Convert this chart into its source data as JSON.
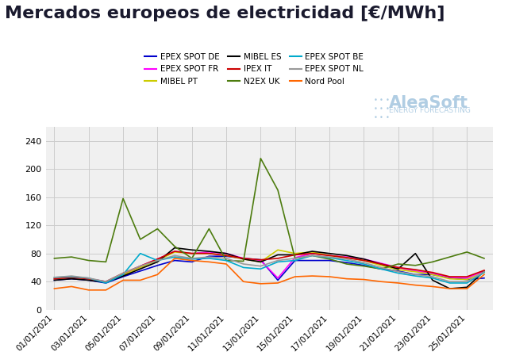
{
  "title": "Mercados europeos de electricidad [€/MWh]",
  "title_fontsize": 16,
  "title_color": "#1a1a2e",
  "background_color": "#ffffff",
  "plot_bg_color": "#f0f0f0",
  "grid_color": "#cccccc",
  "ylim": [
    0,
    260
  ],
  "yticks": [
    0,
    40,
    80,
    120,
    160,
    200,
    240
  ],
  "x_labels": [
    "01/01/2021",
    "03/01/2021",
    "05/01/2021",
    "07/01/2021",
    "09/01/2021",
    "11/01/2021",
    "13/01/2021",
    "15/01/2021",
    "17/01/2021",
    "19/01/2021",
    "21/01/2021",
    "23/01/2021",
    "25/01/2021"
  ],
  "series": {
    "EPEX SPOT DE": {
      "color": "#0000cc",
      "data": [
        42,
        44,
        42,
        38,
        47,
        55,
        63,
        70,
        68,
        76,
        76,
        73,
        71,
        42,
        70,
        70,
        70,
        67,
        63,
        58,
        55,
        50,
        50,
        45,
        43,
        45
      ]
    },
    "EPEX SPOT FR": {
      "color": "#ff00ff",
      "data": [
        44,
        46,
        44,
        40,
        50,
        62,
        72,
        83,
        80,
        82,
        80,
        73,
        70,
        45,
        74,
        80,
        77,
        75,
        72,
        66,
        60,
        55,
        52,
        46,
        45,
        55
      ]
    },
    "MIBEL PT": {
      "color": "#cccc00",
      "data": [
        44,
        46,
        44,
        39,
        50,
        60,
        70,
        82,
        80,
        80,
        77,
        72,
        68,
        85,
        80,
        82,
        77,
        74,
        70,
        63,
        57,
        54,
        50,
        44,
        43,
        53
      ]
    },
    "MIBEL ES": {
      "color": "#000000",
      "data": [
        42,
        44,
        42,
        39,
        48,
        58,
        68,
        88,
        85,
        83,
        80,
        72,
        68,
        78,
        78,
        83,
        80,
        77,
        72,
        65,
        58,
        80,
        42,
        30,
        32,
        55
      ]
    },
    "IPEX IT": {
      "color": "#cc0000",
      "data": [
        44,
        46,
        44,
        40,
        52,
        62,
        72,
        83,
        80,
        80,
        77,
        73,
        71,
        73,
        78,
        80,
        77,
        74,
        70,
        65,
        60,
        57,
        53,
        47,
        47,
        56
      ]
    },
    "N2EX UK": {
      "color": "#4d7c0f",
      "data": [
        73,
        75,
        70,
        68,
        158,
        100,
        115,
        90,
        73,
        115,
        70,
        69,
        215,
        170,
        73,
        77,
        72,
        65,
        62,
        58,
        65,
        63,
        68,
        75,
        82,
        73
      ]
    },
    "EPEX SPOT BE": {
      "color": "#00aacc",
      "data": [
        46,
        47,
        45,
        38,
        50,
        80,
        70,
        75,
        72,
        73,
        70,
        60,
        58,
        68,
        70,
        77,
        74,
        70,
        65,
        58,
        52,
        48,
        45,
        38,
        38,
        53
      ]
    },
    "EPEX SPOT NL": {
      "color": "#999999",
      "data": [
        46,
        48,
        45,
        40,
        52,
        62,
        70,
        77,
        73,
        75,
        73,
        65,
        62,
        70,
        73,
        77,
        75,
        72,
        67,
        60,
        54,
        50,
        47,
        40,
        40,
        54
      ]
    },
    "Nord Pool": {
      "color": "#ff6600",
      "data": [
        30,
        33,
        28,
        28,
        42,
        42,
        50,
        73,
        70,
        68,
        65,
        40,
        37,
        38,
        47,
        48,
        47,
        44,
        43,
        40,
        38,
        35,
        33,
        30,
        30,
        50
      ]
    }
  },
  "legend_order": [
    "EPEX SPOT DE",
    "EPEX SPOT FR",
    "MIBEL PT",
    "MIBEL ES",
    "IPEX IT",
    "N2EX UK",
    "EPEX SPOT BE",
    "EPEX SPOT NL",
    "Nord Pool"
  ],
  "logo_text": "AleaSoft",
  "logo_subtext": "ENERGY FORECASTING",
  "logo_color": "#a8c8e0"
}
